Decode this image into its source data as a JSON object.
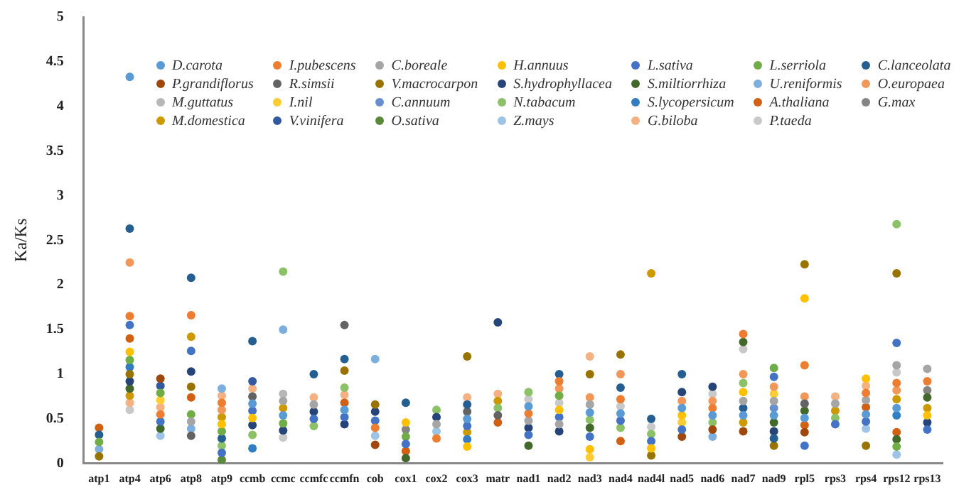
{
  "chart_data": {
    "type": "scatter",
    "ylabel": "Ka/Ks",
    "ylim": [
      0,
      5
    ],
    "yticks": [
      0,
      0.5,
      1,
      1.5,
      2,
      2.5,
      3,
      3.5,
      4,
      4.5,
      5
    ],
    "grid": false,
    "legend": "top",
    "marker": "circle",
    "categories": [
      "atp1",
      "atp4",
      "atp6",
      "atp8",
      "atp9",
      "ccmb",
      "ccmc",
      "ccmfc",
      "ccmfn",
      "cob",
      "cox1",
      "cox2",
      "cox3",
      "matr",
      "nad1",
      "nad2",
      "nad3",
      "nad4",
      "nad4l",
      "nad5",
      "nad6",
      "nad7",
      "nad9",
      "rpl5",
      "rps3",
      "rps4",
      "rps12",
      "rps13"
    ],
    "series": [
      {
        "name": "D.carota",
        "color": "#5b9bd5",
        "values": [
          null,
          4.33,
          null,
          null,
          null,
          0.67,
          0.54,
          null,
          0.6,
          null,
          null,
          null,
          0.5,
          null,
          0.64,
          null,
          0.57,
          0.56,
          null,
          0.62,
          0.54,
          0.54,
          0.54,
          0.51,
          null,
          0.55,
          0.62,
          null
        ]
      },
      {
        "name": "I.pubescens",
        "color": "#ed7d31",
        "values": [
          null,
          1.65,
          0.55,
          1.66,
          0.68,
          null,
          null,
          null,
          null,
          0.4,
          null,
          0.28,
          null,
          null,
          0.56,
          0.92,
          null,
          0.72,
          null,
          null,
          0.62,
          1.45,
          null,
          1.1,
          null,
          0.79,
          0.9,
          0.92
        ]
      },
      {
        "name": "C.boreale",
        "color": "#a5a5a5",
        "values": [
          null,
          null,
          null,
          0.47,
          null,
          null,
          0.7,
          0.66,
          null,
          null,
          null,
          0.44,
          null,
          null,
          0.48,
          0.44,
          0.66,
          null,
          null,
          null,
          null,
          0.7,
          0.7,
          null,
          0.67,
          0.71,
          1.1,
          1.06
        ]
      },
      {
        "name": "H.annuus",
        "color": "#ffc000",
        "values": [
          null,
          1.25,
          null,
          null,
          0.44,
          0.51,
          null,
          null,
          null,
          null,
          0.46,
          null,
          0.19,
          null,
          null,
          0.6,
          0.16,
          null,
          0.17,
          0.54,
          null,
          0.8,
          null,
          1.85,
          null,
          0.95,
          null,
          0.54
        ]
      },
      {
        "name": "L.sativa",
        "color": "#4472c4",
        "values": [
          null,
          1.55,
          0.47,
          1.26,
          0.12,
          0.59,
          null,
          0.5,
          0.52,
          0.48,
          0.22,
          null,
          0.42,
          null,
          0.32,
          0.52,
          0.3,
          0.48,
          0.25,
          0.38,
          null,
          null,
          0.97,
          0.2,
          0.44,
          0.47,
          1.35,
          0.38
        ]
      },
      {
        "name": "L.serriola",
        "color": "#70ad47",
        "values": [
          0.24,
          1.16,
          0.79,
          0.55,
          0.36,
          null,
          0.45,
          null,
          null,
          null,
          0.3,
          null,
          null,
          null,
          null,
          0.76,
          null,
          null,
          null,
          null,
          null,
          null,
          1.07,
          null,
          null,
          null,
          0.19,
          null
        ]
      },
      {
        "name": "C.lanceolata",
        "color": "#255e91",
        "values": [
          0.32,
          2.63,
          null,
          2.08,
          0.28,
          1.37,
          null,
          1.0,
          1.17,
          null,
          0.68,
          null,
          0.66,
          null,
          null,
          1.0,
          null,
          0.85,
          0.5,
          1.0,
          null,
          0.62,
          0.28,
          null,
          null,
          null,
          null,
          null
        ]
      },
      {
        "name": "P.grandiflorus",
        "color": "#9e480e",
        "values": [
          null,
          null,
          0.95,
          null,
          null,
          null,
          null,
          null,
          null,
          0.21,
          null,
          null,
          null,
          null,
          null,
          null,
          null,
          null,
          null,
          0.3,
          0.38,
          0.36,
          null,
          0.35,
          null,
          null,
          null,
          null
        ]
      },
      {
        "name": "R.simsii",
        "color": "#636363",
        "values": [
          null,
          null,
          null,
          0.31,
          null,
          0.75,
          null,
          null,
          1.55,
          null,
          null,
          null,
          0.58,
          0.54,
          null,
          null,
          null,
          null,
          null,
          null,
          null,
          null,
          null,
          0.67,
          null,
          null,
          null,
          null
        ]
      },
      {
        "name": "V.macrocarpon",
        "color": "#997300",
        "values": [
          0.08,
          1.0,
          null,
          0.86,
          null,
          null,
          null,
          null,
          1.04,
          0.66,
          null,
          null,
          1.2,
          null,
          null,
          null,
          1.0,
          1.22,
          0.09,
          null,
          null,
          null,
          0.2,
          2.23,
          null,
          0.2,
          2.13,
          null
        ]
      },
      {
        "name": "S.hydrophyllacea",
        "color": "#264478",
        "values": [
          null,
          0.92,
          null,
          1.03,
          null,
          0.43,
          0.37,
          0.58,
          0.44,
          0.58,
          null,
          0.52,
          null,
          1.58,
          0.4,
          0.36,
          null,
          null,
          null,
          0.8,
          0.86,
          null,
          0.36,
          null,
          null,
          null,
          null,
          0.46
        ]
      },
      {
        "name": "S.miltiorrhiza",
        "color": "#43682b",
        "values": [
          null,
          0.84,
          0.39,
          null,
          null,
          null,
          null,
          null,
          null,
          null,
          0.06,
          null,
          null,
          null,
          0.2,
          null,
          0.4,
          null,
          null,
          null,
          null,
          1.36,
          0.46,
          0.59,
          null,
          null,
          0.27,
          0.74
        ]
      },
      {
        "name": "U.reniformis",
        "color": "#7cafdd",
        "values": [
          0.16,
          null,
          null,
          0.39,
          0.84,
          null,
          1.5,
          null,
          null,
          1.17,
          null,
          null,
          null,
          null,
          null,
          null,
          null,
          null,
          null,
          null,
          0.3,
          null,
          null,
          null,
          null,
          null,
          null,
          null
        ]
      },
      {
        "name": "O.europaea",
        "color": "#f1975a",
        "values": [
          null,
          2.25,
          null,
          null,
          0.6,
          null,
          null,
          null,
          null,
          null,
          null,
          null,
          null,
          null,
          null,
          0.84,
          0.74,
          1.0,
          null,
          0.7,
          0.7,
          1.0,
          0.86,
          0.75,
          null,
          null,
          0.82,
          null
        ]
      },
      {
        "name": "M.guttatus",
        "color": "#b7b7b7",
        "values": [
          null,
          null,
          null,
          null,
          null,
          null,
          0.78,
          null,
          null,
          null,
          null,
          null,
          null,
          null,
          null,
          null,
          null,
          null,
          null,
          null,
          null,
          null,
          null,
          null,
          null,
          null,
          null,
          null
        ]
      },
      {
        "name": "I.nil",
        "color": "#ffcd33",
        "values": [
          null,
          null,
          0.71,
          null,
          null,
          null,
          null,
          null,
          null,
          null,
          null,
          null,
          null,
          null,
          null,
          null,
          0.07,
          null,
          null,
          0.46,
          null,
          null,
          0.78,
          null,
          null,
          null,
          null,
          null
        ]
      },
      {
        "name": "C.annuum",
        "color": "#698ed0",
        "values": [
          null,
          null,
          null,
          null,
          null,
          null,
          null,
          null,
          null,
          null,
          null,
          null,
          null,
          null,
          null,
          null,
          null,
          null,
          null,
          null,
          null,
          null,
          0.62,
          null,
          null,
          null,
          null,
          null
        ]
      },
      {
        "name": "N.tabacum",
        "color": "#8cc168",
        "values": [
          null,
          null,
          null,
          null,
          0.2,
          0.32,
          2.15,
          0.42,
          0.85,
          null,
          null,
          0.6,
          null,
          0.62,
          0.8,
          null,
          0.49,
          0.4,
          0.33,
          null,
          0.46,
          0.9,
          null,
          null,
          0.51,
          null,
          2.68,
          null
        ]
      },
      {
        "name": "S.lycopersicum",
        "color": "#327dc2",
        "values": [
          null,
          1.08,
          null,
          null,
          null,
          0.17,
          null,
          null,
          null,
          null,
          null,
          null,
          0.27,
          null,
          null,
          null,
          null,
          null,
          null,
          null,
          null,
          null,
          null,
          null,
          null,
          null,
          0.54,
          null
        ]
      },
      {
        "name": "A.thaliana",
        "color": "#d26012",
        "values": [
          0.4,
          1.4,
          null,
          0.74,
          null,
          null,
          null,
          null,
          0.68,
          null,
          0.14,
          null,
          null,
          0.46,
          null,
          null,
          null,
          0.25,
          null,
          null,
          null,
          null,
          null,
          0.43,
          null,
          0.63,
          0.35,
          null
        ]
      },
      {
        "name": "G.max",
        "color": "#848484",
        "values": [
          null,
          null,
          null,
          null,
          null,
          null,
          null,
          null,
          null,
          null,
          0.38,
          null,
          null,
          null,
          null,
          null,
          null,
          null,
          null,
          null,
          null,
          null,
          null,
          null,
          null,
          null,
          null,
          0.82
        ]
      },
      {
        "name": "M.domestica",
        "color": "#cc9a00",
        "values": [
          null,
          0.76,
          null,
          1.42,
          0.52,
          null,
          0.62,
          null,
          null,
          null,
          null,
          null,
          0.35,
          0.7,
          null,
          null,
          null,
          null,
          2.13,
          null,
          null,
          0.46,
          null,
          null,
          0.59,
          null,
          0.72,
          0.62
        ]
      },
      {
        "name": "V.vinifera",
        "color": "#335aa1",
        "values": [
          null,
          null,
          0.87,
          null,
          null,
          0.92,
          null,
          null,
          null,
          null,
          null,
          null,
          null,
          null,
          null,
          null,
          null,
          null,
          null,
          null,
          null,
          null,
          null,
          null,
          null,
          null,
          null,
          null
        ]
      },
      {
        "name": "O.sativa",
        "color": "#5a8a39",
        "values": [
          null,
          null,
          null,
          null,
          0.04,
          null,
          null,
          null,
          null,
          null,
          null,
          null,
          null,
          null,
          null,
          null,
          null,
          null,
          null,
          null,
          null,
          null,
          null,
          null,
          null,
          null,
          null,
          null
        ]
      },
      {
        "name": "Z.mays",
        "color": "#9dc3e6",
        "values": [
          null,
          null,
          0.31,
          null,
          null,
          null,
          null,
          null,
          null,
          0.31,
          null,
          0.36,
          null,
          null,
          null,
          null,
          null,
          null,
          null,
          null,
          null,
          null,
          null,
          null,
          null,
          0.39,
          0.1,
          null
        ]
      },
      {
        "name": "G.biloba",
        "color": "#f4b183",
        "values": [
          null,
          0.68,
          0.63,
          null,
          0.76,
          0.84,
          null,
          0.74,
          0.77,
          null,
          null,
          null,
          0.74,
          0.78,
          null,
          null,
          1.2,
          null,
          null,
          null,
          null,
          null,
          null,
          null,
          0.75,
          0.87,
          null,
          null
        ]
      },
      {
        "name": "P.taeda",
        "color": "#c9c9c9",
        "values": [
          null,
          0.6,
          null,
          null,
          null,
          null,
          0.29,
          null,
          null,
          null,
          null,
          null,
          null,
          null,
          0.72,
          0.68,
          null,
          0.64,
          0.41,
          null,
          0.78,
          1.28,
          null,
          null,
          null,
          null,
          1.02,
          null
        ]
      }
    ]
  }
}
